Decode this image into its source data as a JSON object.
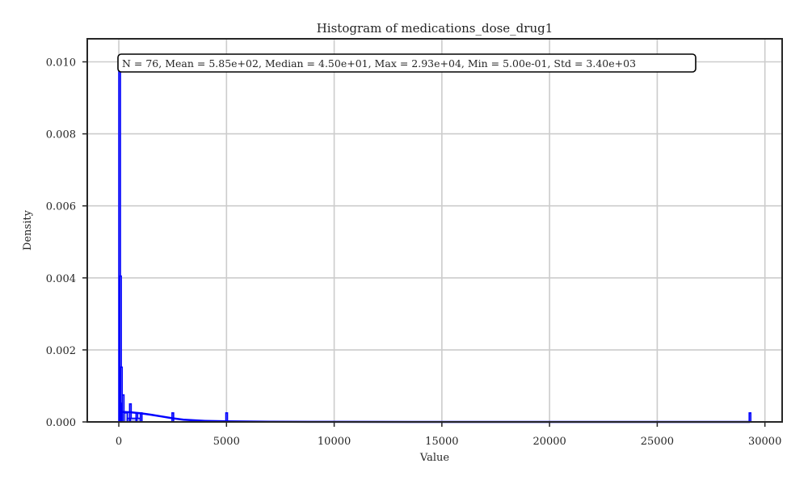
{
  "chart_data": {
    "type": "histogram",
    "title": "Histogram of medications_dose_drug1",
    "xlabel": "Value",
    "ylabel": "Density",
    "xlim": [
      -1465,
      30800
    ],
    "ylim": [
      0,
      0.01064
    ],
    "grid": true,
    "x_ticks": [
      0,
      5000,
      10000,
      15000,
      20000,
      25000,
      30000
    ],
    "y_ticks": [
      0.0,
      0.002,
      0.004,
      0.006,
      0.008,
      0.01
    ],
    "x_tick_labels": [
      "0",
      "5000",
      "10000",
      "15000",
      "20000",
      "25000",
      "30000"
    ],
    "y_tick_labels": [
      "0.000",
      "0.002",
      "0.004",
      "0.006",
      "0.008",
      "0.010"
    ],
    "annotation": "N = 76, Mean = 5.85e+02, Median = 4.50e+01, Max = 2.93e+04, Min = 5.00e-01, Std = 3.40e+03",
    "series_color": "#0000ff",
    "fill_color": "#b0b4e8",
    "bins": [
      {
        "x0": 0.5,
        "x1": 40,
        "density": 0.00988
      },
      {
        "x0": 40,
        "x1": 80,
        "density": 0.00405
      },
      {
        "x0": 80,
        "x1": 120,
        "density": 0.00152
      },
      {
        "x0": 120,
        "x1": 160,
        "density": 0.00052
      },
      {
        "x0": 160,
        "x1": 240,
        "density": 0.00075
      },
      {
        "x0": 240,
        "x1": 400,
        "density": 0.00025
      },
      {
        "x0": 400,
        "x1": 500,
        "density": 0.0001
      },
      {
        "x0": 500,
        "x1": 540,
        "density": 0.0005
      },
      {
        "x0": 540,
        "x1": 800,
        "density": 0.0001
      },
      {
        "x0": 800,
        "x1": 840,
        "density": 0.00025
      },
      {
        "x0": 840,
        "x1": 1000,
        "density": 0.0001
      },
      {
        "x0": 1000,
        "x1": 1060,
        "density": 0.00025
      },
      {
        "x0": 2470,
        "x1": 2530,
        "density": 0.00025
      },
      {
        "x0": 4970,
        "x1": 5030,
        "density": 0.00025
      },
      {
        "x0": 29270,
        "x1": 29330,
        "density": 0.00025
      }
    ],
    "kde": {
      "x": [
        0,
        500,
        1000,
        1500,
        2000,
        2500,
        3000,
        4000,
        5000,
        7000,
        10000,
        15000,
        20000,
        25000,
        29300
      ],
      "y": [
        0.00028,
        0.00027,
        0.00024,
        0.0002,
        0.00015,
        0.0001,
        6e-05,
        3e-05,
        1.5e-05,
        5e-06,
        2e-06,
        5e-07,
        2e-07,
        1e-07,
        1e-07
      ]
    }
  }
}
